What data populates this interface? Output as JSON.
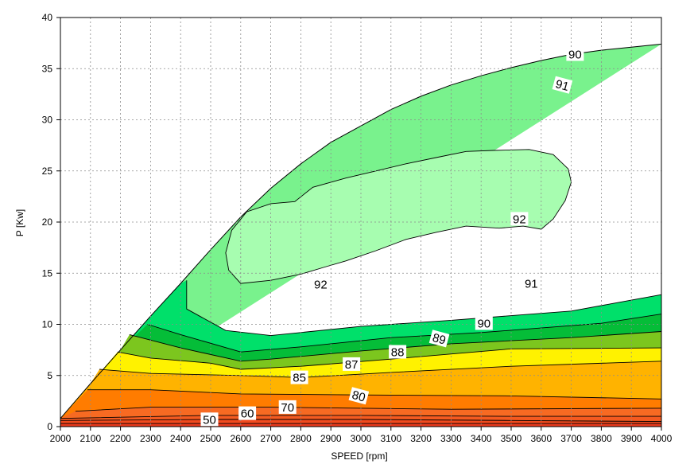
{
  "chart_data": {
    "type": "contour",
    "xlabel": "SPEED [rpm]",
    "ylabel": "P [Kw]",
    "xlim": [
      2000,
      4000
    ],
    "ylim": [
      0,
      40
    ],
    "x_ticks": [
      "2000",
      "2100",
      "2200",
      "2300",
      "2400",
      "2500",
      "2600",
      "2700",
      "2800",
      "2900",
      "3000",
      "3100",
      "3200",
      "3300",
      "3400",
      "3500",
      "3600",
      "3700",
      "3800",
      "3900",
      "4000"
    ],
    "y_ticks": [
      "0",
      "5",
      "10",
      "15",
      "20",
      "25",
      "30",
      "35",
      "40"
    ],
    "grid": true,
    "max_power_envelope": [
      {
        "x": 2000,
        "y": 0.8
      },
      {
        "x": 2100,
        "y": 4.2
      },
      {
        "x": 2200,
        "y": 7.5
      },
      {
        "x": 2300,
        "y": 10.8
      },
      {
        "x": 2400,
        "y": 14.0
      },
      {
        "x": 2500,
        "y": 17.3
      },
      {
        "x": 2600,
        "y": 20.5
      },
      {
        "x": 2700,
        "y": 23.3
      },
      {
        "x": 2800,
        "y": 25.7
      },
      {
        "x": 2900,
        "y": 27.8
      },
      {
        "x": 3000,
        "y": 29.4
      },
      {
        "x": 3100,
        "y": 31.0
      },
      {
        "x": 3200,
        "y": 32.3
      },
      {
        "x": 3300,
        "y": 33.4
      },
      {
        "x": 3400,
        "y": 34.3
      },
      {
        "x": 3500,
        "y": 35.1
      },
      {
        "x": 3600,
        "y": 35.8
      },
      {
        "x": 3700,
        "y": 36.4
      },
      {
        "x": 3800,
        "y": 36.8
      },
      {
        "x": 3900,
        "y": 37.1
      },
      {
        "x": 4000,
        "y": 37.4
      }
    ],
    "efficiency_bands": [
      {
        "level": "<50",
        "color": "#e8391c",
        "upper": [
          {
            "x": 2000,
            "y": 0.3
          },
          {
            "x": 4000,
            "y": 0.3
          }
        ]
      },
      {
        "level": "50",
        "color": "#f14a1e",
        "upper": [
          {
            "x": 2000,
            "y": 0.6
          },
          {
            "x": 2500,
            "y": 0.7
          },
          {
            "x": 3000,
            "y": 0.7
          },
          {
            "x": 3500,
            "y": 0.6
          },
          {
            "x": 4000,
            "y": 0.5
          }
        ]
      },
      {
        "level": "60",
        "color": "#f45a20",
        "upper": [
          {
            "x": 2000,
            "y": 0.8
          },
          {
            "x": 2500,
            "y": 1.1
          },
          {
            "x": 3000,
            "y": 1.1
          },
          {
            "x": 3500,
            "y": 1.0
          },
          {
            "x": 4000,
            "y": 1.0
          }
        ]
      },
      {
        "level": "70",
        "color": "#f76a22",
        "upper": [
          {
            "x": 2050,
            "y": 1.5
          },
          {
            "x": 2300,
            "y": 1.9
          },
          {
            "x": 2700,
            "y": 1.9
          },
          {
            "x": 3300,
            "y": 1.7
          },
          {
            "x": 4000,
            "y": 1.8
          }
        ]
      },
      {
        "level": "80",
        "color": "#ff7c00",
        "upper": [
          {
            "x": 2090,
            "y": 3.6
          },
          {
            "x": 2300,
            "y": 3.6
          },
          {
            "x": 2600,
            "y": 3.2
          },
          {
            "x": 3000,
            "y": 3.1
          },
          {
            "x": 3500,
            "y": 3.0
          },
          {
            "x": 4000,
            "y": 2.7
          }
        ]
      },
      {
        "level": "85",
        "color": "#ffb300",
        "upper": [
          {
            "x": 2130,
            "y": 5.6
          },
          {
            "x": 2300,
            "y": 5.2
          },
          {
            "x": 2600,
            "y": 5.0
          },
          {
            "x": 2800,
            "y": 4.8
          },
          {
            "x": 3100,
            "y": 5.3
          },
          {
            "x": 3500,
            "y": 5.9
          },
          {
            "x": 4000,
            "y": 6.4
          }
        ]
      },
      {
        "level": "87",
        "color": "#fff200",
        "upper": [
          {
            "x": 2190,
            "y": 7.3
          },
          {
            "x": 2300,
            "y": 6.7
          },
          {
            "x": 2500,
            "y": 6.2
          },
          {
            "x": 2600,
            "y": 5.6
          },
          {
            "x": 2800,
            "y": 5.9
          },
          {
            "x": 3100,
            "y": 6.6
          },
          {
            "x": 3500,
            "y": 7.6
          },
          {
            "x": 4000,
            "y": 7.7
          }
        ]
      },
      {
        "level": "88",
        "color": "#7cc61e",
        "upper": [
          {
            "x": 2230,
            "y": 9.0
          },
          {
            "x": 2400,
            "y": 7.7
          },
          {
            "x": 2600,
            "y": 6.4
          },
          {
            "x": 2700,
            "y": 6.6
          },
          {
            "x": 3000,
            "y": 7.4
          },
          {
            "x": 3300,
            "y": 8.1
          },
          {
            "x": 3700,
            "y": 8.7
          },
          {
            "x": 4000,
            "y": 9.3
          }
        ]
      },
      {
        "level": "89",
        "color": "#05bd38",
        "upper": [
          {
            "x": 2290,
            "y": 10.0
          },
          {
            "x": 2400,
            "y": 9.0
          },
          {
            "x": 2600,
            "y": 7.3
          },
          {
            "x": 2800,
            "y": 7.8
          },
          {
            "x": 3100,
            "y": 8.7
          },
          {
            "x": 3400,
            "y": 9.2
          },
          {
            "x": 3800,
            "y": 10.1
          },
          {
            "x": 4000,
            "y": 11.0
          }
        ]
      },
      {
        "level": "90",
        "color": "#00e06a",
        "upper": [
          {
            "x": 2420,
            "y": 14.3
          },
          {
            "x": 2420,
            "y": 11.5
          },
          {
            "x": 2550,
            "y": 9.4
          },
          {
            "x": 2700,
            "y": 8.9
          },
          {
            "x": 3000,
            "y": 9.8
          },
          {
            "x": 3300,
            "y": 10.4
          },
          {
            "x": 3700,
            "y": 11.3
          },
          {
            "x": 4000,
            "y": 12.9
          }
        ]
      },
      {
        "level": "91",
        "color": "#79f28d",
        "upper": []
      },
      {
        "level": "92",
        "color": "#a7fdb0",
        "upper": []
      }
    ],
    "contour_labels": [
      "50",
      "60",
      "70",
      "80",
      "85",
      "87",
      "88",
      "89",
      "90",
      "91",
      "92",
      "92",
      "90",
      "91"
    ]
  }
}
